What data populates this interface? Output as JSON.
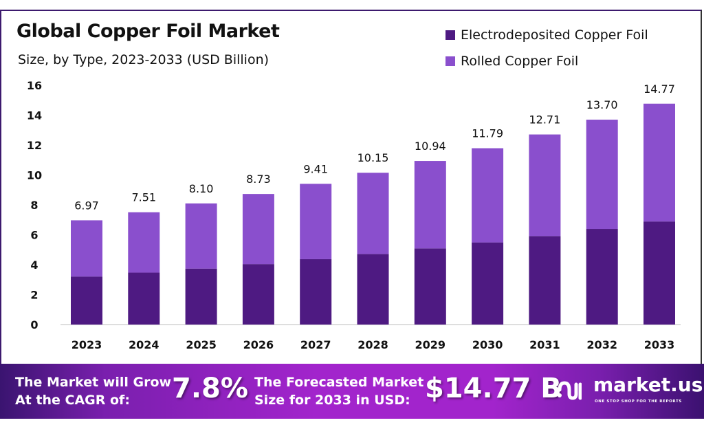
{
  "header": {
    "title": "Global Copper Foil Market",
    "subtitle": "Size, by Type, 2023-2033 (USD Billion)"
  },
  "legend": [
    {
      "label": "Electrodeposited Copper Foil",
      "color": "#4e1a82"
    },
    {
      "label": "Rolled Copper Foil",
      "color": "#8a4fcd"
    }
  ],
  "chart_data": {
    "type": "bar",
    "stacked": true,
    "title": "Global Copper Foil Market",
    "subtitle": "Size, by Type, 2023-2033 (USD Billion)",
    "xlabel": "",
    "ylabel": "",
    "ylim": [
      0,
      16
    ],
    "yticks": [
      "0",
      "2",
      "4",
      "6",
      "8",
      "10",
      "12",
      "14",
      "16"
    ],
    "grid": false,
    "legend_position": "top-right",
    "categories": [
      "2023",
      "2024",
      "2025",
      "2026",
      "2027",
      "2028",
      "2029",
      "2030",
      "2031",
      "2032",
      "2033"
    ],
    "series": [
      {
        "name": "Electrodeposited Copper Foil",
        "color": "#4e1a82",
        "values": [
          3.21,
          3.47,
          3.74,
          4.04,
          4.37,
          4.72,
          5.09,
          5.49,
          5.92,
          6.39,
          6.89
        ]
      },
      {
        "name": "Rolled Copper Foil",
        "color": "#8a4fcd",
        "values": [
          3.76,
          4.04,
          4.36,
          4.69,
          5.04,
          5.43,
          5.85,
          6.3,
          6.79,
          7.31,
          7.88
        ]
      }
    ],
    "totals": [
      6.97,
      7.51,
      8.1,
      8.73,
      9.41,
      10.15,
      10.94,
      11.79,
      12.71,
      13.7,
      14.77
    ],
    "total_labels": [
      "6.97",
      "7.51",
      "8.10",
      "8.73",
      "9.41",
      "10.15",
      "10.94",
      "11.79",
      "12.71",
      "13.70",
      "14.77"
    ]
  },
  "banner": {
    "cagr_text_line1": "The Market will Grow",
    "cagr_text_line2": "At the CAGR of:",
    "cagr_value": "7.8%",
    "forecast_text_line1": "The Forecasted Market",
    "forecast_text_line2": "Size for 2033 in USD:",
    "forecast_value": "$14.77 B",
    "brand_name": "market.us",
    "brand_tagline": "ONE STOP SHOP FOR THE REPORTS",
    "brand_icon": "market-us-logo-icon"
  }
}
